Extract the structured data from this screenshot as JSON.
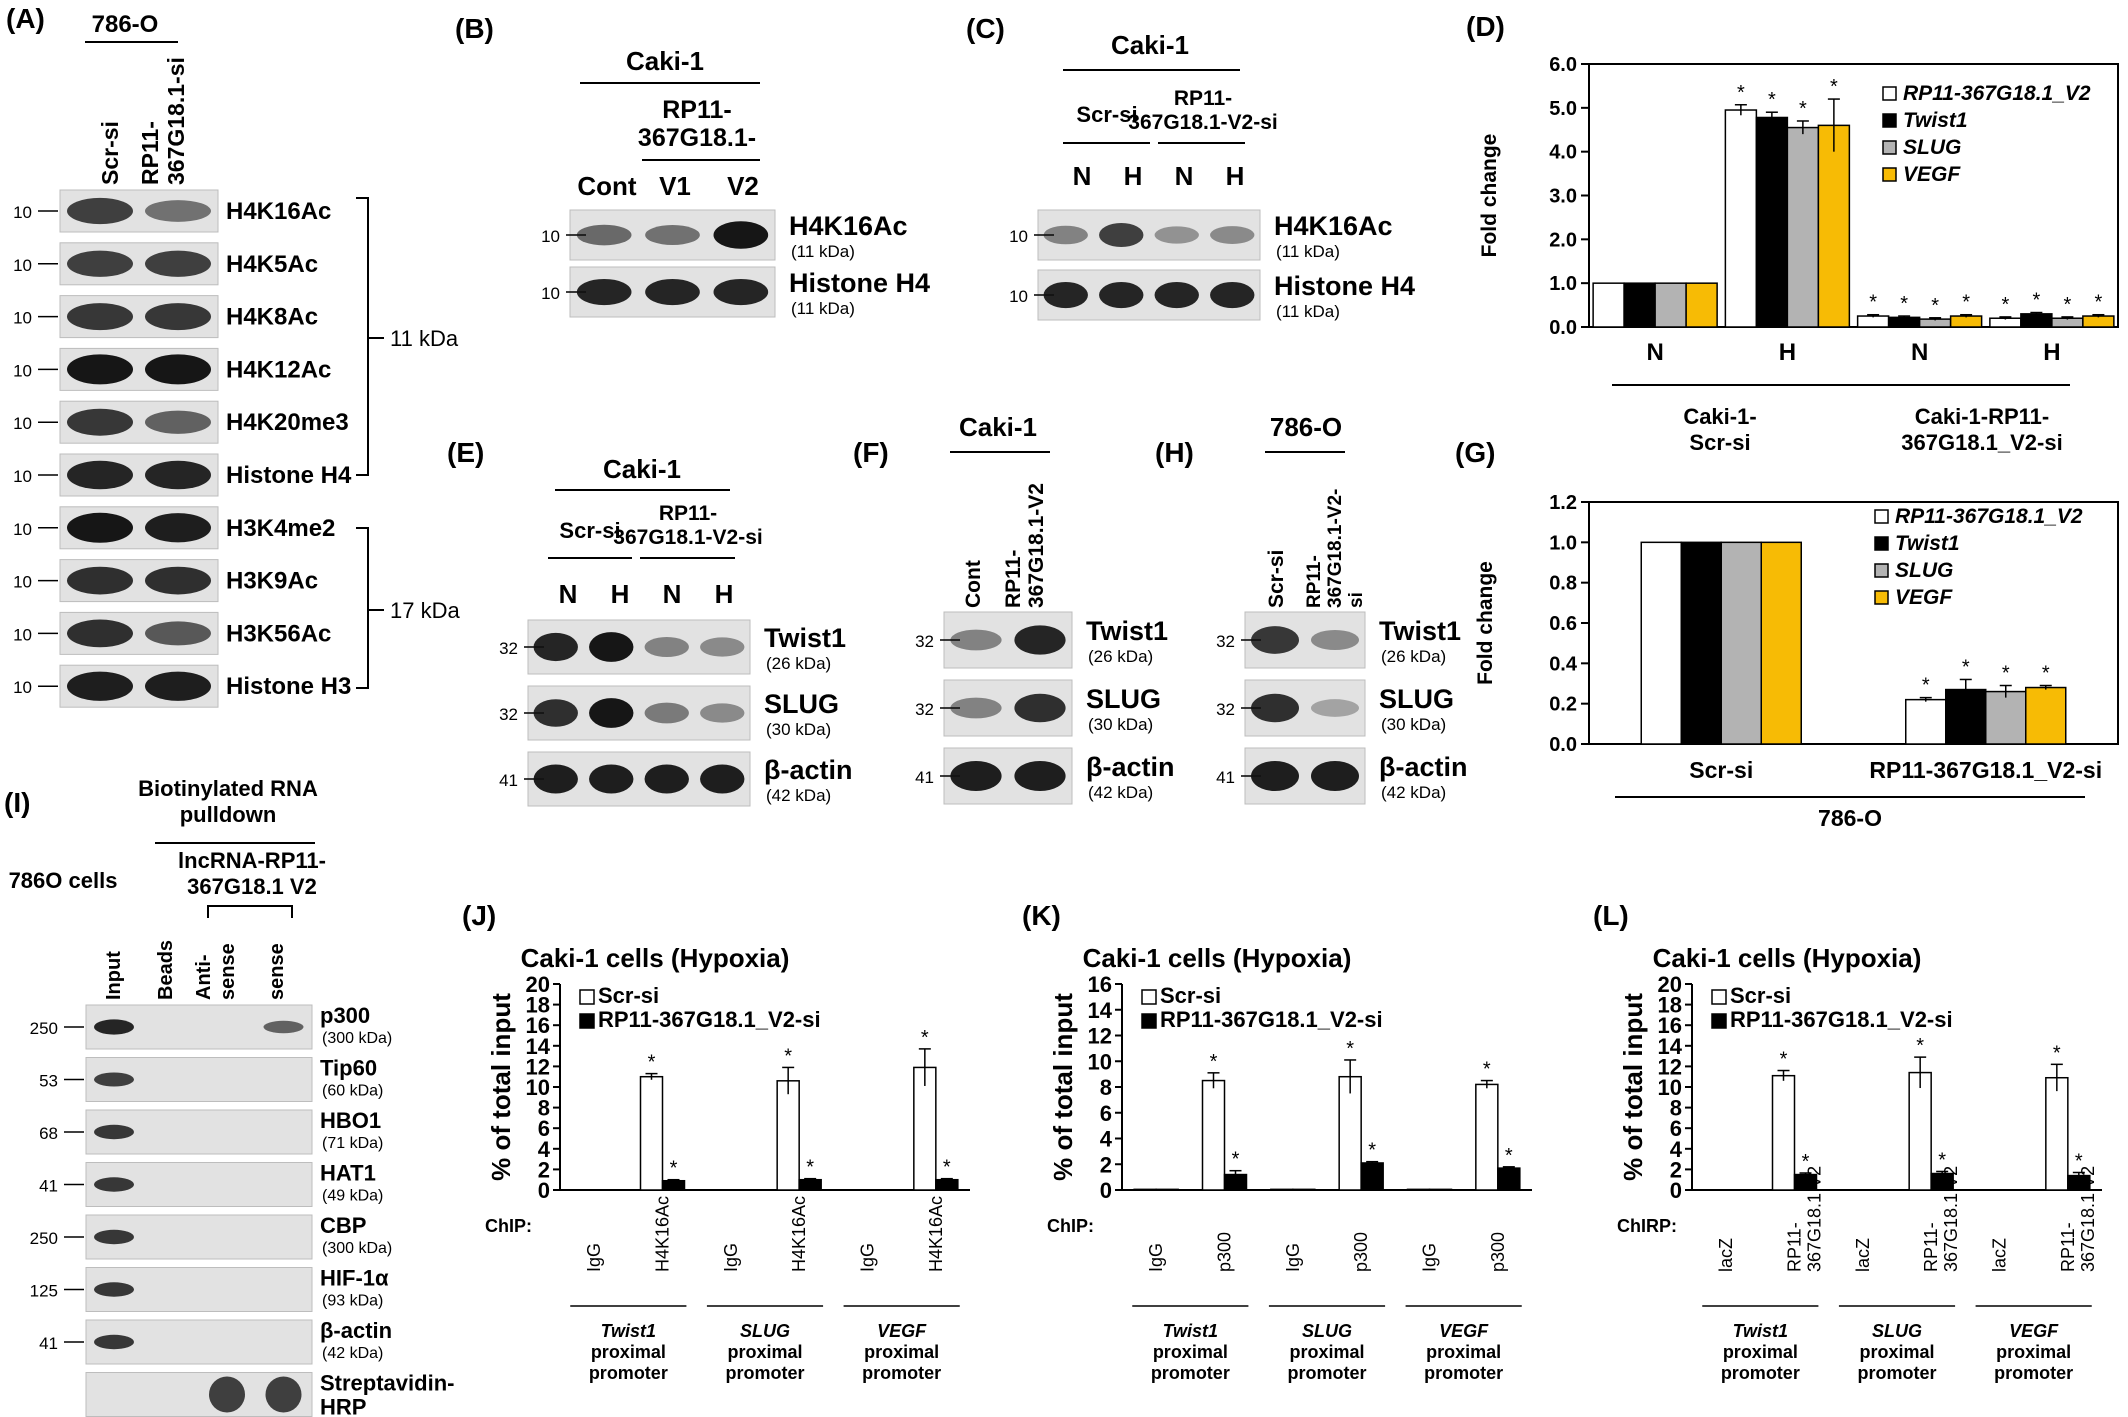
{
  "panels": {
    "A": {
      "letter": "(A)",
      "cell": "786-O",
      "lanes": [
        "Scr-si",
        "RP11-\n367G18.1-si"
      ],
      "blots": [
        {
          "name": "H4K16Ac",
          "mw": "10",
          "left": 0.75,
          "right": 0.45
        },
        {
          "name": "H4K5Ac",
          "mw": "10",
          "left": 0.75,
          "right": 0.75
        },
        {
          "name": "H4K8Ac",
          "mw": "10",
          "left": 0.8,
          "right": 0.8
        },
        {
          "name": "H4K12Ac",
          "mw": "10",
          "left": 1.0,
          "right": 1.0
        },
        {
          "name": "H4K20me3",
          "mw": "10",
          "left": 0.8,
          "right": 0.55
        },
        {
          "name": "Histone H4",
          "mw": "10",
          "left": 0.9,
          "right": 0.9
        },
        {
          "name": "H3K4me2",
          "mw": "10",
          "left": 1.0,
          "right": 0.95
        },
        {
          "name": "H3K9Ac",
          "mw": "10",
          "left": 0.85,
          "right": 0.85
        },
        {
          "name": "H3K56Ac",
          "mw": "10",
          "left": 0.85,
          "right": 0.6
        },
        {
          "name": "Histone H3",
          "mw": "10",
          "left": 0.95,
          "right": 0.95
        }
      ],
      "brackets": [
        "11 kDa",
        "17 kDa"
      ]
    },
    "B": {
      "letter": "(B)",
      "cell": "Caki-1",
      "group": "RP11-\n367G18.1-",
      "lanes": [
        "Cont",
        "V1",
        "V2"
      ],
      "blots": [
        {
          "name": "H4K16Ac",
          "size": "(11 kDa)",
          "mw": "10",
          "bands": [
            0.5,
            0.45,
            1.0
          ]
        },
        {
          "name": "Histone H4",
          "size": "(11 kDa)",
          "mw": "10",
          "bands": [
            0.9,
            0.9,
            0.9
          ]
        }
      ]
    },
    "C": {
      "letter": "(C)",
      "cell": "Caki-1",
      "groups": [
        "Scr-si",
        "RP11-\n367G18.1-V2-si"
      ],
      "lanes": [
        "N",
        "H",
        "N",
        "H"
      ],
      "blots": [
        {
          "name": "H4K16Ac",
          "size": "(11 kDa)",
          "mw": "10",
          "bands": [
            0.35,
            0.75,
            0.25,
            0.3
          ]
        },
        {
          "name": "Histone H4",
          "size": "(11 kDa)",
          "mw": "10",
          "bands": [
            0.9,
            0.9,
            0.9,
            0.9
          ]
        }
      ]
    },
    "D": {
      "letter": "(D)",
      "ylabel": "Fold change",
      "ticks": [
        "0.0",
        "1.0",
        "2.0",
        "3.0",
        "4.0",
        "5.0",
        "6.0"
      ],
      "xlabels": [
        "N",
        "H",
        "N",
        "H"
      ],
      "groups": [
        "Caki-1-\nScr-si",
        "Caki-1-RP11-\n367G18.1_V2-si"
      ],
      "legend": [
        "RP11-367G18.1_V2",
        "Twist1",
        "SLUG",
        "VEGF"
      ]
    },
    "E": {
      "letter": "(E)",
      "cell": "Caki-1",
      "groups": [
        "Scr-si",
        "RP11-\n367G18.1-V2-si"
      ],
      "lanes": [
        "N",
        "H",
        "N",
        "H"
      ],
      "blots": [
        {
          "name": "Twist1",
          "size": "(26 kDa)",
          "mw": "32",
          "bands": [
            0.9,
            1.0,
            0.35,
            0.3
          ]
        },
        {
          "name": "SLUG",
          "size": "(30 kDa)",
          "mw": "32",
          "bands": [
            0.85,
            1.0,
            0.4,
            0.3
          ]
        },
        {
          "name": "β-actin",
          "size": "(42 kDa)",
          "mw": "41",
          "bands": [
            0.95,
            0.95,
            0.95,
            0.95
          ]
        }
      ]
    },
    "F": {
      "letter": "(F)",
      "cell": "Caki-1",
      "lanes": [
        "Cont",
        "RP11-\n367G18.1-V2"
      ],
      "blots": [
        {
          "name": "Twist1",
          "size": "(26 kDa)",
          "mw": "32",
          "bands": [
            0.35,
            0.9
          ]
        },
        {
          "name": "SLUG",
          "size": "(30 kDa)",
          "mw": "32",
          "bands": [
            0.35,
            0.85
          ]
        },
        {
          "name": "β-actin",
          "size": "(42 kDa)",
          "mw": "41",
          "bands": [
            0.95,
            0.95
          ]
        }
      ]
    },
    "H": {
      "letter": "(H)",
      "cell": "786-O",
      "lanes": [
        "Scr-si",
        "RP11-\n367G18.1-V2-\nsi"
      ],
      "blots": [
        {
          "name": "Twist1",
          "size": "(26 kDa)",
          "mw": "32",
          "bands": [
            0.8,
            0.3
          ]
        },
        {
          "name": "SLUG",
          "size": "(30 kDa)",
          "mw": "32",
          "bands": [
            0.85,
            0.15
          ]
        },
        {
          "name": "β-actin",
          "size": "(42 kDa)",
          "mw": "41",
          "bands": [
            0.95,
            0.95
          ]
        }
      ]
    },
    "G": {
      "letter": "(G)",
      "ylabel": "Fold change",
      "ticks": [
        "0.0",
        "0.2",
        "0.4",
        "0.6",
        "0.8",
        "1.0",
        "1.2"
      ],
      "groups": [
        "Scr-si",
        "RP11-367G18.1_V2-si"
      ],
      "cell": "786-O",
      "legend": [
        "RP11-367G18.1_V2",
        "Twist1",
        "SLUG",
        "VEGF"
      ]
    },
    "I": {
      "letter": "(I)",
      "title": "Biotinylated RNA\npulldown",
      "cells": "786O cells",
      "probe": "lncRNA-RP11-\n367G18.1 V2",
      "lanes": [
        "Input",
        "Beads",
        "Anti-\nsense",
        "sense"
      ],
      "blots": [
        {
          "name": "p300",
          "size": "(300 kDa)",
          "mw": "250",
          "bands": [
            0.9,
            0,
            0,
            0.55
          ]
        },
        {
          "name": "Tip60",
          "size": "(60 kDa)",
          "mw": "53",
          "bands": [
            0.75,
            0,
            0,
            0
          ]
        },
        {
          "name": "HBO1",
          "size": "(71 kDa)",
          "mw": "68",
          "bands": [
            0.8,
            0,
            0,
            0
          ]
        },
        {
          "name": "HAT1",
          "size": "(49 kDa)",
          "mw": "41",
          "bands": [
            0.8,
            0,
            0,
            0
          ]
        },
        {
          "name": "CBP",
          "size": "(300 kDa)",
          "mw": "250",
          "bands": [
            0.8,
            0,
            0,
            0
          ]
        },
        {
          "name": "HIF-1α",
          "size": "(93 kDa)",
          "mw": "125",
          "bands": [
            0.8,
            0,
            0,
            0
          ]
        },
        {
          "name": "β-actin",
          "size": "(42 kDa)",
          "mw": "41",
          "bands": [
            0.8,
            0,
            0,
            0
          ]
        },
        {
          "name": "Streptavidin-\nHRP",
          "size": "",
          "mw": "",
          "bands": [
            0,
            0,
            1.0,
            1.0
          ]
        }
      ]
    },
    "J": {
      "letter": "(J)",
      "title": "Caki-1 cells (Hypoxia)",
      "ylabel": "% of total input",
      "ticks": [
        "0",
        "2",
        "4",
        "6",
        "8",
        "10",
        "12",
        "14",
        "16",
        "18",
        "20"
      ],
      "legend": [
        "Scr-si",
        "RP11-367G18.1_V2-si"
      ],
      "assay": "ChIP:",
      "xlabels": [
        "IgG",
        "H4K16Ac",
        "IgG",
        "H4K16Ac",
        "IgG",
        "H4K16Ac"
      ],
      "promoters": [
        {
          "gene": "Twist1",
          "rest": "proximal\npromoter"
        },
        {
          "gene": "SLUG",
          "rest": "proximal\npromoter"
        },
        {
          "gene": "VEGF",
          "rest": "proximal\npromoter"
        }
      ]
    },
    "K": {
      "letter": "(K)",
      "title": "Caki-1 cells (Hypoxia)",
      "ylabel": "% of total input",
      "ticks": [
        "0",
        "2",
        "4",
        "6",
        "8",
        "10",
        "12",
        "14",
        "16"
      ],
      "legend": [
        "Scr-si",
        "RP11-367G18.1_V2-si"
      ],
      "assay": "ChIP:",
      "xlabels": [
        "IgG",
        "p300",
        "IgG",
        "p300",
        "IgG",
        "p300"
      ],
      "promoters": [
        {
          "gene": "Twist1",
          "rest": "proximal\npromoter"
        },
        {
          "gene": "SLUG",
          "rest": "proximal\npromoter"
        },
        {
          "gene": "VEGF",
          "rest": "proximal\npromoter"
        }
      ]
    },
    "L": {
      "letter": "(L)",
      "title": "Caki-1 cells (Hypoxia)",
      "ylabel": "% of total input",
      "ticks": [
        "0",
        "2",
        "4",
        "6",
        "8",
        "10",
        "12",
        "14",
        "16",
        "18",
        "20"
      ],
      "legend": [
        "Scr-si",
        "RP11-367G18.1_V2-si"
      ],
      "assay": "ChIRP:",
      "xlabels": [
        "lacZ",
        "RP11-\n367G18.1 V2",
        "lacZ",
        "RP11-\n367G18.1 V2",
        "lacZ",
        "RP11-\n367G18.1 V2"
      ],
      "promoters": [
        {
          "gene": "Twist1",
          "rest": "proximal\npromoter"
        },
        {
          "gene": "SLUG",
          "rest": "proximal\npromoter"
        },
        {
          "gene": "VEGF",
          "rest": "proximal\npromoter"
        }
      ]
    }
  },
  "colors": {
    "white": "#ffffff",
    "black": "#000000",
    "gray": "#b3b3b3",
    "yellow": "#f7bb05",
    "edge": "#000000"
  },
  "chart_data": [
    {
      "panel": "D",
      "type": "bar",
      "categories": [
        "N",
        "H",
        "N",
        "H"
      ],
      "series": [
        {
          "name": "RP11-367G18.1_V2",
          "values": [
            1.0,
            4.95,
            0.25,
            0.2
          ],
          "err": [
            0,
            0.12,
            0.03,
            0.03
          ]
        },
        {
          "name": "Twist1",
          "values": [
            1.0,
            4.78,
            0.22,
            0.3
          ],
          "err": [
            0,
            0.12,
            0.03,
            0.03
          ]
        },
        {
          "name": "SLUG",
          "values": [
            1.0,
            4.55,
            0.18,
            0.2
          ],
          "err": [
            0,
            0.15,
            0.03,
            0.03
          ]
        },
        {
          "name": "VEGF",
          "values": [
            1.0,
            4.6,
            0.25,
            0.25
          ],
          "err": [
            0,
            0.6,
            0.03,
            0.03
          ]
        }
      ],
      "significant": [
        [
          false,
          true,
          true,
          true
        ],
        [
          false,
          true,
          true,
          true
        ],
        [
          false,
          true,
          true,
          true
        ],
        [
          false,
          true,
          true,
          true
        ]
      ],
      "ylabel": "Fold change",
      "ylim": [
        0,
        6
      ]
    },
    {
      "panel": "G",
      "type": "bar",
      "categories": [
        "Scr-si",
        "RP11-367G18.1_V2-si"
      ],
      "series": [
        {
          "name": "RP11-367G18.1_V2",
          "values": [
            1.0,
            0.22
          ],
          "err": [
            0,
            0.01
          ]
        },
        {
          "name": "Twist1",
          "values": [
            1.0,
            0.27
          ],
          "err": [
            0,
            0.05
          ]
        },
        {
          "name": "SLUG",
          "values": [
            1.0,
            0.26
          ],
          "err": [
            0,
            0.03
          ]
        },
        {
          "name": "VEGF",
          "values": [
            1.0,
            0.28
          ],
          "err": [
            0,
            0.01
          ]
        }
      ],
      "significant": [
        [
          false,
          true
        ],
        [
          false,
          true
        ],
        [
          false,
          true
        ],
        [
          false,
          true
        ]
      ],
      "ylabel": "Fold change",
      "ylim": [
        0,
        1.2
      ]
    },
    {
      "panel": "J",
      "type": "bar",
      "categories": [
        "IgG",
        "H4K16Ac",
        "IgG",
        "H4K16Ac",
        "IgG",
        "H4K16Ac"
      ],
      "series": [
        {
          "name": "Scr-si",
          "values": [
            0,
            11.0,
            0,
            10.6,
            0,
            11.9
          ],
          "err": [
            0,
            0.3,
            0,
            1.3,
            0,
            1.8
          ]
        },
        {
          "name": "RP11-367G18.1_V2-si",
          "values": [
            0,
            0.9,
            0,
            1.0,
            0,
            1.0
          ],
          "err": [
            0,
            0.1,
            0,
            0.1,
            0,
            0.1
          ]
        }
      ],
      "ylabel": "% of total input",
      "ylim": [
        0,
        20
      ]
    },
    {
      "panel": "K",
      "type": "bar",
      "categories": [
        "IgG",
        "p300",
        "IgG",
        "p300",
        "IgG",
        "p300"
      ],
      "series": [
        {
          "name": "Scr-si",
          "values": [
            0.05,
            8.5,
            0.05,
            8.8,
            0.05,
            8.2
          ],
          "err": [
            0,
            0.6,
            0,
            1.3,
            0,
            0.3
          ]
        },
        {
          "name": "RP11-367G18.1_V2-si",
          "values": [
            0.05,
            1.2,
            0.05,
            2.1,
            0.05,
            1.7
          ],
          "err": [
            0,
            0.3,
            0,
            0.1,
            0,
            0.1
          ]
        }
      ],
      "ylabel": "% of total input",
      "ylim": [
        0,
        16
      ]
    },
    {
      "panel": "L",
      "type": "bar",
      "categories": [
        "lacZ",
        "RP11-367G18.1 V2",
        "lacZ",
        "RP11-367G18.1 V2",
        "lacZ",
        "RP11-367G18.1 V2"
      ],
      "series": [
        {
          "name": "Scr-si",
          "values": [
            0,
            11.1,
            0,
            11.4,
            0,
            10.9
          ],
          "err": [
            0,
            0.5,
            0,
            1.5,
            0,
            1.3
          ]
        },
        {
          "name": "RP11-367G18.1_V2-si",
          "values": [
            0,
            1.5,
            0,
            1.6,
            0,
            1.4
          ],
          "err": [
            0,
            0.15,
            0,
            0.2,
            0,
            0.3
          ]
        }
      ],
      "ylabel": "% of total input",
      "ylim": [
        0,
        20
      ]
    }
  ]
}
